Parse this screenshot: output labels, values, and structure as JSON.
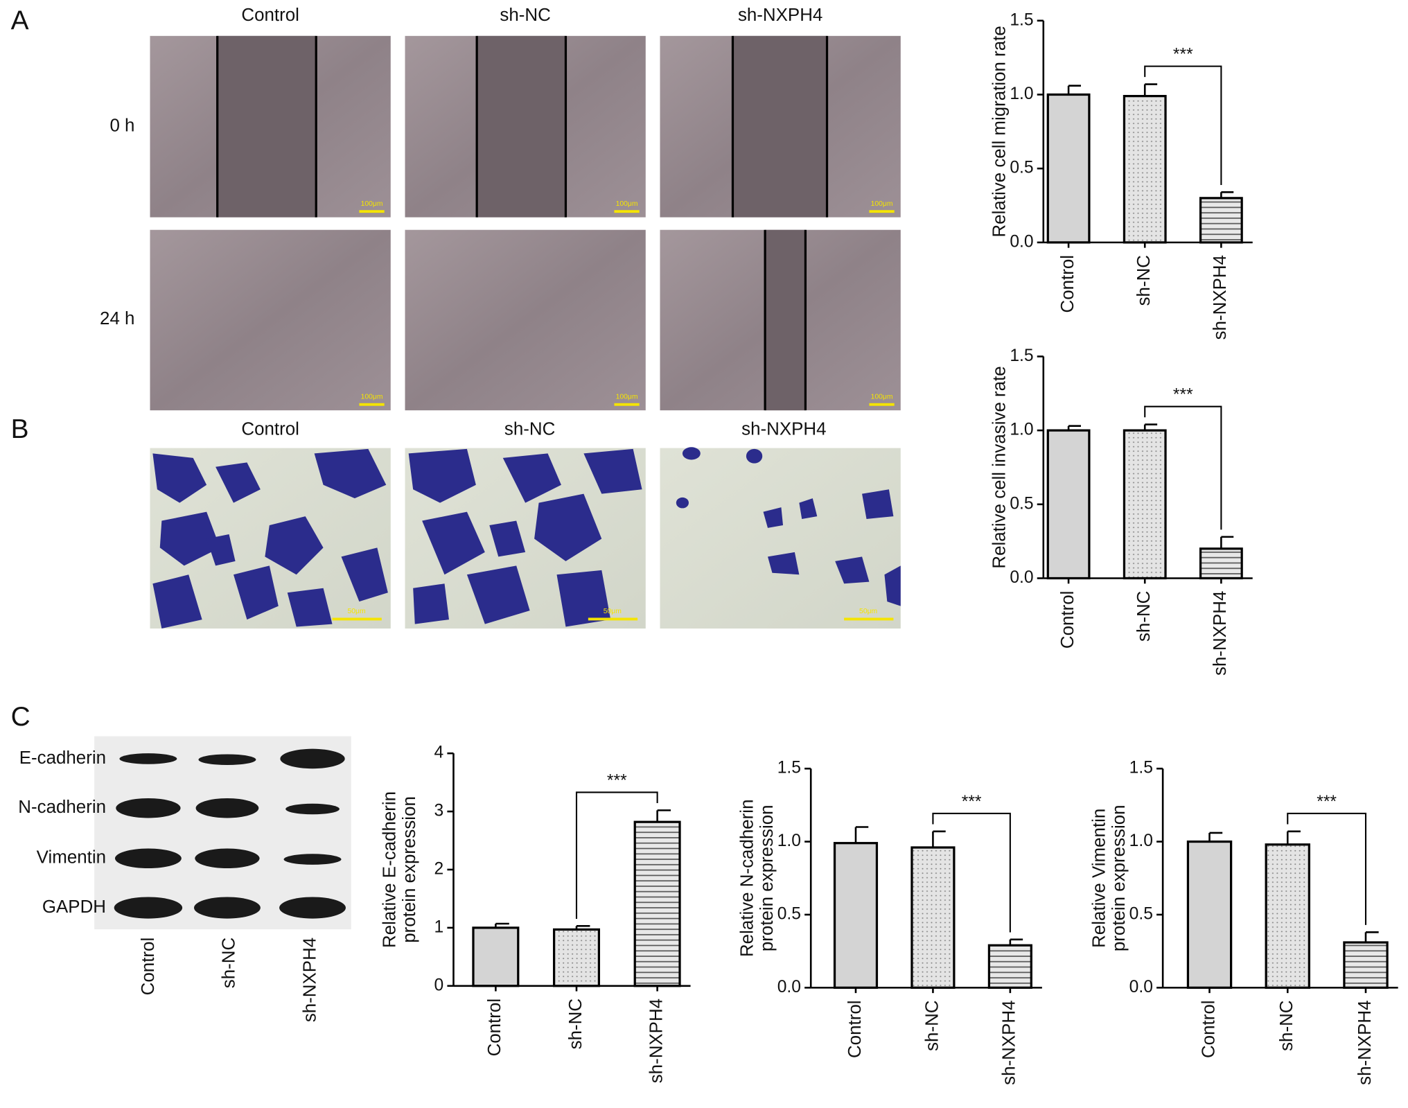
{
  "figure": {
    "panel_labels": [
      "A",
      "B",
      "C"
    ],
    "wound_healing": {
      "columns": [
        "Control",
        "sh-NC",
        "sh-NXPH4"
      ],
      "rows": [
        "0 h",
        "24 h"
      ],
      "scale_bar": "100μm"
    },
    "transwell": {
      "columns": [
        "Control",
        "sh-NC",
        "sh-NXPH4"
      ],
      "scale_bar": "50μm"
    },
    "western_blot": {
      "proteins": [
        "E-cadherin",
        "N-cadherin",
        "Vimentin",
        "GAPDH"
      ],
      "lanes": [
        "Control",
        "sh-NC",
        "sh-NXPH4"
      ]
    }
  },
  "chart_data": [
    {
      "type": "bar",
      "ylabel": [
        "Relative cell migration rate"
      ],
      "categories": [
        "Control",
        "sh-NC",
        "sh-NXPH4"
      ],
      "values": [
        1.0,
        0.99,
        0.3
      ],
      "errors": [
        0.06,
        0.08,
        0.04
      ],
      "ylim": [
        0,
        1.5
      ],
      "yticks": [
        {
          "value": 0,
          "label": "0.0"
        },
        0.5,
        {
          "value": 1,
          "label": "1.0"
        },
        1.5
      ],
      "patterns": [
        "solid",
        "dots",
        "hlines"
      ],
      "color": "#d4d4d4",
      "grid": false,
      "significance": {
        "label": "***",
        "between": [
          1,
          2
        ]
      }
    },
    {
      "type": "bar",
      "ylabel": [
        "Relative cell invasive rate"
      ],
      "categories": [
        "Control",
        "sh-NC",
        "sh-NXPH4"
      ],
      "values": [
        1.0,
        1.0,
        0.2
      ],
      "errors": [
        0.03,
        0.04,
        0.08
      ],
      "ylim": [
        0,
        1.5
      ],
      "yticks": [
        {
          "value": 0,
          "label": "0.0"
        },
        0.5,
        {
          "value": 1,
          "label": "1.0"
        },
        1.5
      ],
      "patterns": [
        "solid",
        "dots",
        "hlines"
      ],
      "color": "#d4d4d4",
      "grid": false,
      "significance": {
        "label": "***",
        "between": [
          1,
          2
        ]
      }
    },
    {
      "type": "bar",
      "ylabel": [
        "Relative E-cadherin",
        "protein expression"
      ],
      "categories": [
        "Control",
        "sh-NC",
        "sh-NXPH4"
      ],
      "values": [
        1.0,
        0.97,
        2.82
      ],
      "errors": [
        0.07,
        0.06,
        0.2
      ],
      "ylim": [
        0,
        4
      ],
      "yticks": [
        0,
        1,
        2,
        3,
        4
      ],
      "patterns": [
        "solid",
        "dots",
        "hlines"
      ],
      "color": "#d4d4d4",
      "grid": false,
      "significance": {
        "label": "***",
        "between": [
          1,
          2
        ]
      }
    },
    {
      "type": "bar",
      "ylabel": [
        "Relative N-cadherin",
        "protein expression"
      ],
      "categories": [
        "Control",
        "sh-NC",
        "sh-NXPH4"
      ],
      "values": [
        0.99,
        0.96,
        0.29
      ],
      "errors": [
        0.11,
        0.11,
        0.04
      ],
      "ylim": [
        0,
        1.5
      ],
      "yticks": [
        {
          "value": 0,
          "label": "0.0"
        },
        0.5,
        {
          "value": 1,
          "label": "1.0"
        },
        1.5
      ],
      "patterns": [
        "solid",
        "dots",
        "hlines"
      ],
      "color": "#d4d4d4",
      "grid": false,
      "significance": {
        "label": "***",
        "between": [
          1,
          2
        ]
      }
    },
    {
      "type": "bar",
      "ylabel": [
        "Relative Vimentin",
        "protein expression"
      ],
      "categories": [
        "Control",
        "sh-NC",
        "sh-NXPH4"
      ],
      "values": [
        1.0,
        0.98,
        0.31
      ],
      "errors": [
        0.06,
        0.09,
        0.07
      ],
      "ylim": [
        0,
        1.5
      ],
      "yticks": [
        {
          "value": 0,
          "label": "0.0"
        },
        0.5,
        {
          "value": 1,
          "label": "1.0"
        },
        1.5
      ],
      "patterns": [
        "solid",
        "dots",
        "hlines"
      ],
      "color": "#d4d4d4",
      "grid": false,
      "significance": {
        "label": "***",
        "between": [
          1,
          2
        ]
      }
    }
  ]
}
